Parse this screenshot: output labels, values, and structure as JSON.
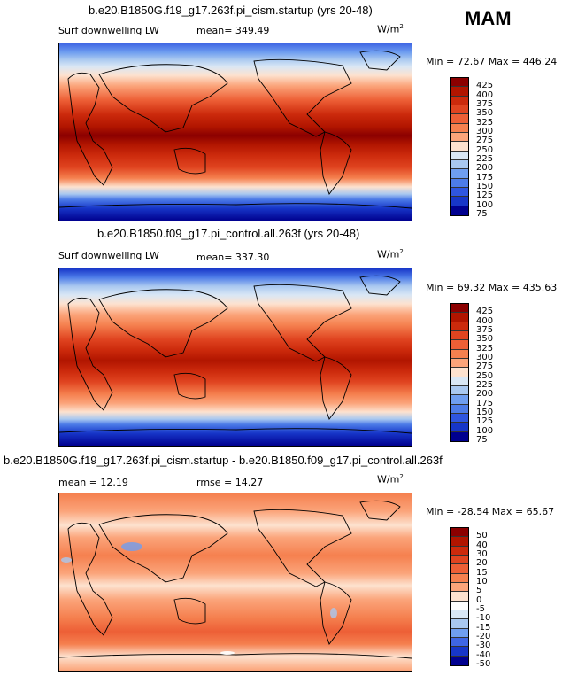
{
  "season": "MAM",
  "chart_data": [
    {
      "type": "heatmap",
      "title": "b.e20.B1850G.f19_g17.263f.pi_cism.startup (yrs 20-48)",
      "variable_label": "Surf downwelling LW",
      "stat_label": "mean=",
      "stat_value": "349.49",
      "units_base": "W/m",
      "units_exp": "2",
      "min_label": "Min =",
      "min_value": "72.67",
      "max_label": "Max =",
      "max_value": "446.24",
      "colorbar_levels": [
        "425",
        "400",
        "375",
        "350",
        "325",
        "300",
        "275",
        "250",
        "225",
        "200",
        "175",
        "150",
        "125",
        "100",
        "75"
      ],
      "colorbar_colors": [
        "#8b0000",
        "#b11500",
        "#cc2a0c",
        "#e04420",
        "#ed5f36",
        "#f5804f",
        "#fba47a",
        "#fde2cf",
        "#d9e7f5",
        "#a9c8f0",
        "#6f9ef0",
        "#4d7ce8",
        "#2f56e0",
        "#1736c8",
        "#00008f"
      ]
    },
    {
      "type": "heatmap",
      "title": "b.e20.B1850.f09_g17.pi_control.all.263f (yrs 20-48)",
      "variable_label": "Surf downwelling LW",
      "stat_label": "mean=",
      "stat_value": "337.30",
      "units_base": "W/m",
      "units_exp": "2",
      "min_label": "Min =",
      "min_value": "69.32",
      "max_label": "Max =",
      "max_value": "435.63",
      "colorbar_levels": [
        "425",
        "400",
        "375",
        "350",
        "325",
        "300",
        "275",
        "250",
        "225",
        "200",
        "175",
        "150",
        "125",
        "100",
        "75"
      ],
      "colorbar_colors": [
        "#8b0000",
        "#b11500",
        "#cc2a0c",
        "#e04420",
        "#ed5f36",
        "#f5804f",
        "#fba47a",
        "#fde2cf",
        "#d9e7f5",
        "#a9c8f0",
        "#6f9ef0",
        "#4d7ce8",
        "#2f56e0",
        "#1736c8",
        "#00008f"
      ]
    },
    {
      "type": "heatmap",
      "title": "b.e20.B1850G.f19_g17.263f.pi_cism.startup - b.e20.B1850.f09_g17.pi_control.all.263f",
      "stat_label": "mean =",
      "stat_value": "12.19",
      "rmse_label": "rmse =",
      "rmse_value": "14.27",
      "units_base": "W/m",
      "units_exp": "2",
      "min_label": "Min =",
      "min_value": "-28.54",
      "max_label": "Max =",
      "max_value": "65.67",
      "colorbar_levels": [
        "50",
        "40",
        "30",
        "20",
        "15",
        "10",
        "5",
        "0",
        "-5",
        "-10",
        "-15",
        "-20",
        "-30",
        "-40",
        "-50"
      ],
      "colorbar_colors": [
        "#8b0000",
        "#b11500",
        "#cc2a0c",
        "#e04420",
        "#ed5f36",
        "#f5804f",
        "#fba47a",
        "#fde2cf",
        "#ffffff",
        "#d9e7f5",
        "#a9c8f0",
        "#6f9ef0",
        "#3f66e4",
        "#1736c8",
        "#00008f"
      ]
    }
  ]
}
